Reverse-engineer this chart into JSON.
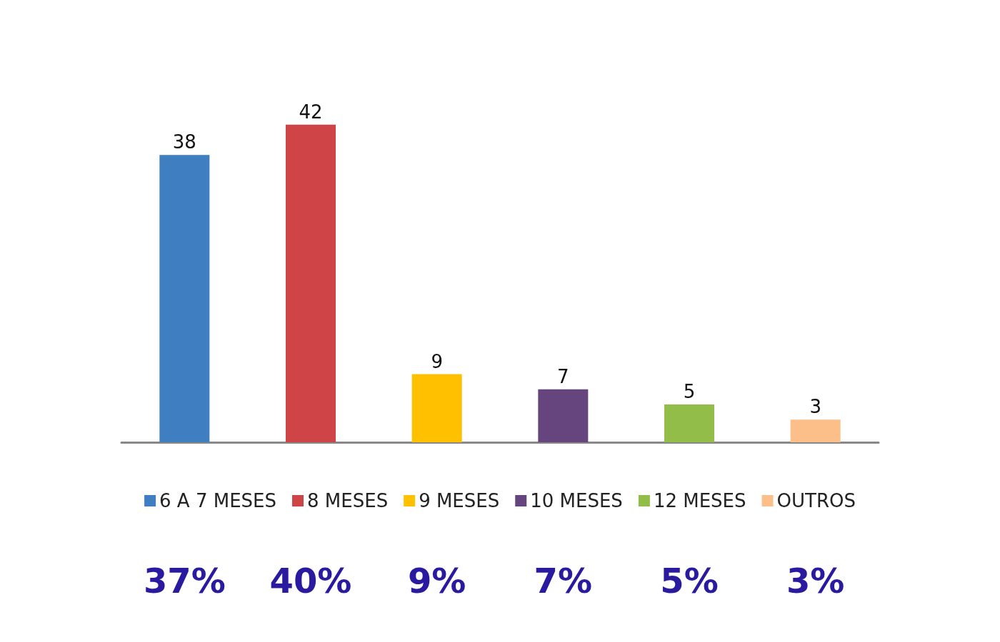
{
  "chart_data": {
    "type": "bar",
    "categories": [
      null,
      null,
      null,
      null,
      null,
      null
    ],
    "stacked": true,
    "data_labels": true,
    "legend": "bottom",
    "series": [
      {
        "name": "6 A 7 MESES",
        "color": "#3f7fc1",
        "values": [
          38,
          null,
          null,
          null,
          null,
          null
        ]
      },
      {
        "name": "8 MESES",
        "color": "#cf4446",
        "values": [
          null,
          42,
          null,
          null,
          null,
          null
        ]
      },
      {
        "name": "9 MESES",
        "color": "#ffc000",
        "values": [
          null,
          null,
          9,
          null,
          null,
          null
        ]
      },
      {
        "name": "10 MESES",
        "color": "#66457e",
        "values": [
          null,
          null,
          null,
          7,
          null,
          null
        ]
      },
      {
        "name": "12 MESES",
        "color": "#92bd48",
        "values": [
          null,
          null,
          null,
          null,
          5,
          null
        ]
      },
      {
        "name": "OUTROS",
        "color": "#fdbf8a",
        "values": [
          null,
          null,
          null,
          null,
          null,
          3
        ]
      }
    ],
    "annotations": [
      "37%",
      "40%",
      "9%",
      "7%",
      "5%",
      "3%"
    ]
  }
}
